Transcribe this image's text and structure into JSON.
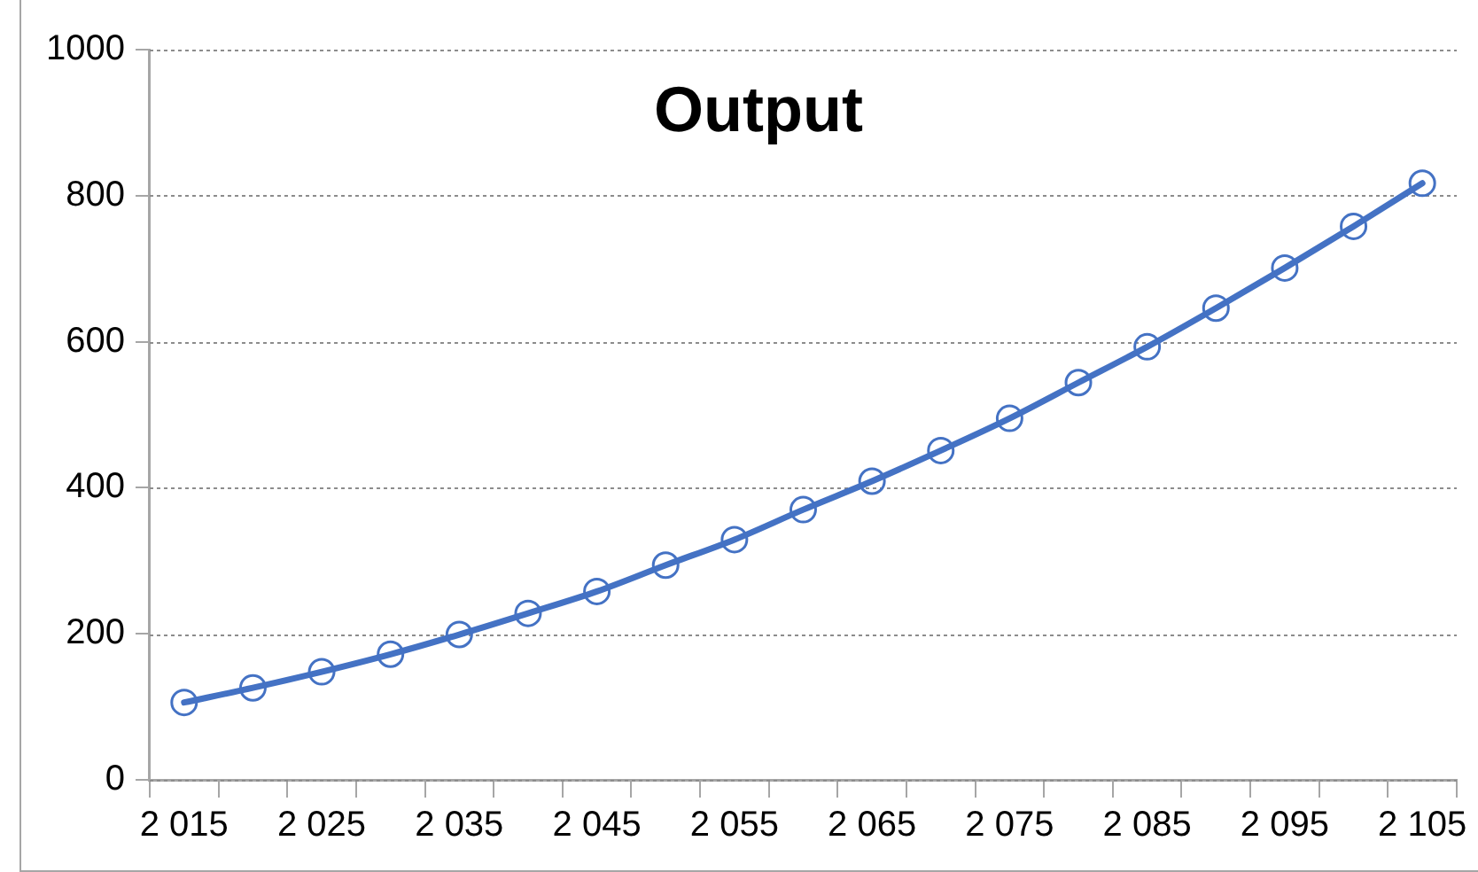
{
  "chart_data": {
    "type": "line",
    "title": "Output",
    "categories": [
      "2 015",
      null,
      "2 025",
      null,
      "2 035",
      null,
      "2 045",
      null,
      "2 055",
      null,
      "2 065",
      null,
      "2 075",
      null,
      "2 085",
      null,
      "2 095",
      null,
      "2 105"
    ],
    "series": [
      {
        "color": "#4472c4",
        "values": [
          106,
          126,
          148,
          172,
          199,
          228,
          258,
          294,
          329,
          370,
          409,
          451,
          495,
          544,
          593,
          646,
          701,
          758,
          817
        ]
      }
    ],
    "ylim": [
      0,
      1000
    ],
    "yticks": [
      0,
      200,
      400,
      600,
      800,
      1000
    ],
    "grid": "y",
    "legend": false,
    "marker": "circle",
    "line_style": "solid"
  }
}
